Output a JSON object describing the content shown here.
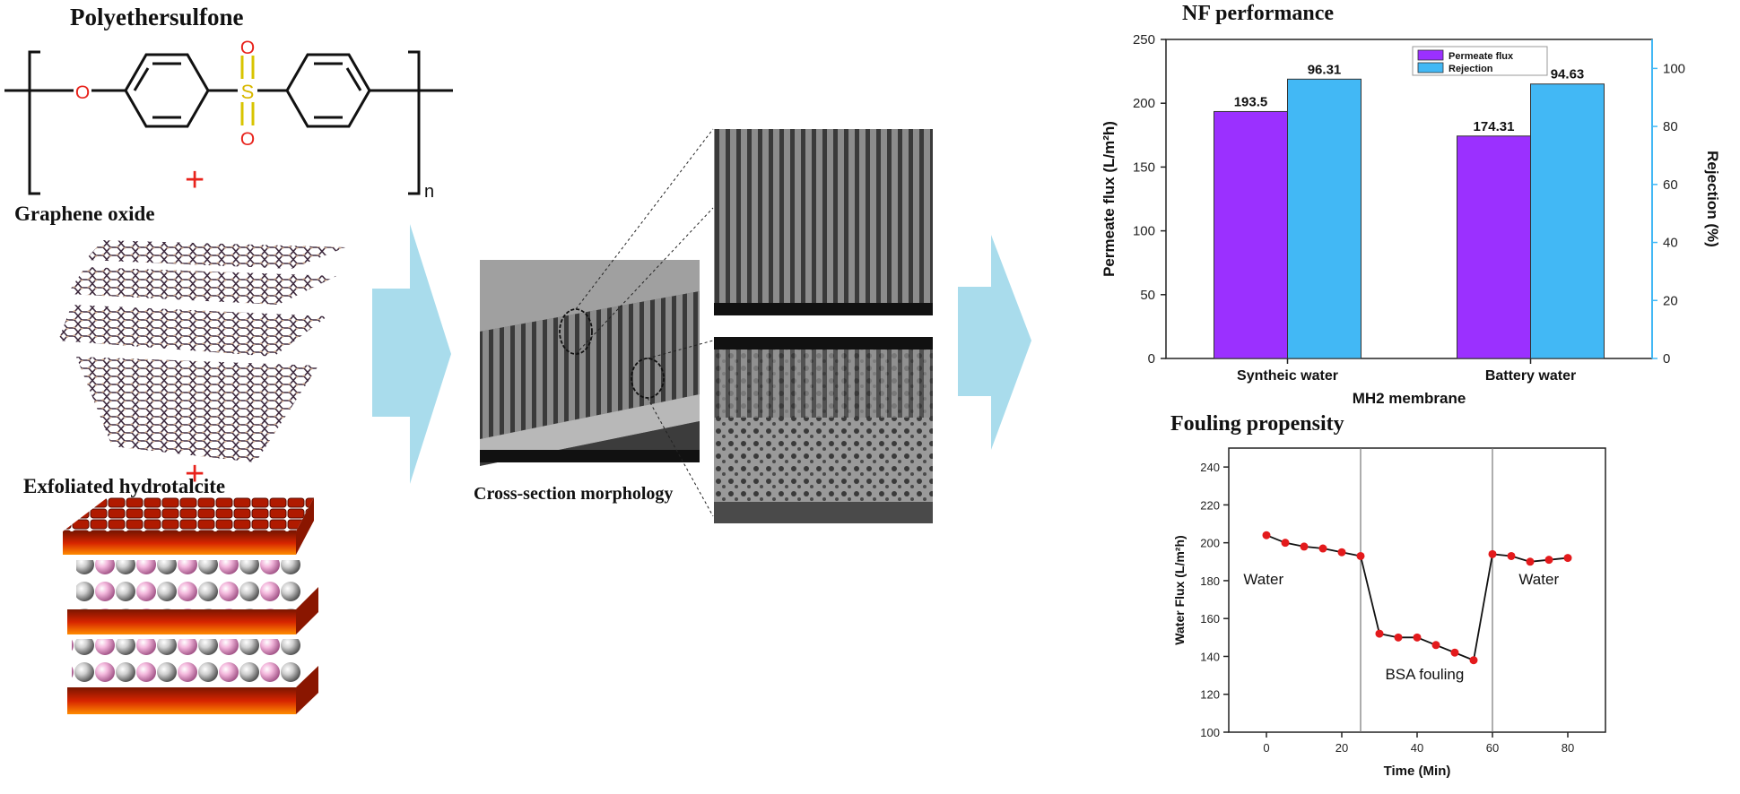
{
  "left": {
    "polymer_title": "Polyethersulfone",
    "repeat_subscript": "n",
    "atom_O": "O",
    "atom_S": "S",
    "plus1": "+",
    "graphene_title": "Graphene oxide",
    "plus2": "+",
    "hydrotalcite_title": "Exfoliated hydrotalcite"
  },
  "middle": {
    "caption": "Cross-section morphology"
  },
  "colors": {
    "arrow": "#a9dcec",
    "permeate_flux": "#9b30ff",
    "rejection": "#42b8f5",
    "fouling_line": "#111111",
    "fouling_marker": "#e31a1c",
    "red_plus": "#e8231c",
    "layer_red": "#c81c00",
    "sphere_pink": "#f0b0d8"
  },
  "chart_data": [
    {
      "type": "bar",
      "title": "NF performance",
      "xlabel": "MH2 membrane",
      "ylabel": "Permeate flux (L/m²h)",
      "y2label": "Rejection (%)",
      "categories": [
        "Syntheic water",
        "Battery water"
      ],
      "series": [
        {
          "name": "Permeate flux",
          "axis": "left",
          "values": [
            193.5,
            174.31
          ],
          "labels": [
            "193.5",
            "174.31"
          ]
        },
        {
          "name": "Rejection",
          "axis": "right",
          "values": [
            96.31,
            94.63
          ],
          "labels": [
            "96.31",
            "94.63"
          ]
        }
      ],
      "ylim": [
        0,
        250
      ],
      "y_ticks": [
        "0",
        "50",
        "100",
        "150",
        "200",
        "250"
      ],
      "y2lim": [
        0,
        110
      ],
      "y2_ticks": [
        "0",
        "20",
        "40",
        "60",
        "80",
        "100"
      ],
      "legend_position": "top-center",
      "grid": false
    },
    {
      "type": "line",
      "title": "Fouling propensity",
      "xlabel": "Time (Min)",
      "ylabel": "Water Flux (L/m²h)",
      "x": [
        0,
        5,
        10,
        15,
        20,
        25,
        30,
        35,
        40,
        45,
        50,
        55,
        60,
        65,
        70,
        75,
        80
      ],
      "y": [
        204,
        200,
        198,
        197,
        195,
        193,
        152,
        150,
        150,
        146,
        142,
        138,
        194,
        193,
        190,
        191,
        192
      ],
      "xlim": [
        -10,
        90
      ],
      "x_ticks": [
        "0",
        "20",
        "40",
        "60",
        "80"
      ],
      "ylim": [
        100,
        250
      ],
      "y_ticks": [
        "100",
        "120",
        "140",
        "160",
        "180",
        "200",
        "220",
        "240"
      ],
      "vlines": [
        25,
        60
      ],
      "annotations": [
        "Water",
        "BSA fouling",
        "Water"
      ],
      "grid": false
    }
  ]
}
